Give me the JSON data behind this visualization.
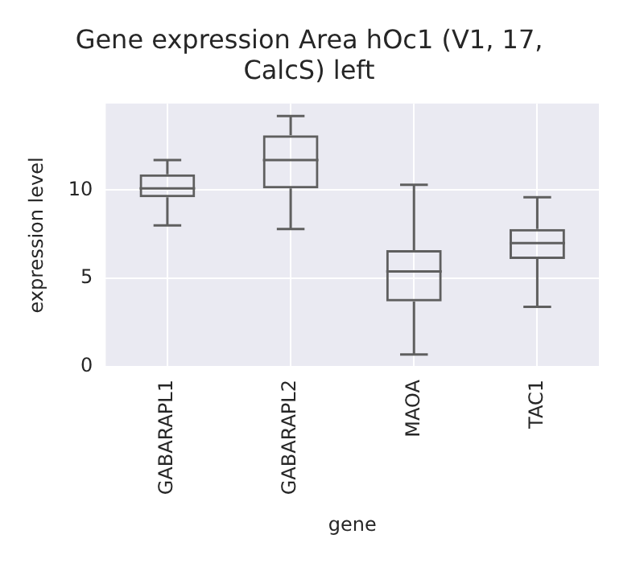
{
  "chart_data": {
    "type": "box",
    "title": "Gene expression Area hOc1 (V1, 17, CalcS) left",
    "xlabel": "gene",
    "ylabel": "expression level",
    "categories": [
      "GABARAPL1",
      "GABARAPL2",
      "MAOA",
      "TAC1"
    ],
    "series": [
      {
        "color": "#5f5f5f",
        "boxes": [
          {
            "low": 8.0,
            "q1": 9.6,
            "median": 10.1,
            "q3": 10.9,
            "high": 11.7
          },
          {
            "low": 7.8,
            "q1": 10.1,
            "median": 11.7,
            "q3": 13.1,
            "high": 14.2
          },
          {
            "low": 0.7,
            "q1": 3.7,
            "median": 5.4,
            "q3": 6.6,
            "high": 10.3
          },
          {
            "low": 3.4,
            "q1": 6.1,
            "median": 7.0,
            "q3": 7.8,
            "high": 9.6
          }
        ]
      }
    ],
    "ylim": [
      0,
      14.9
    ],
    "yticks": [
      0,
      5,
      10
    ],
    "grid": true
  }
}
